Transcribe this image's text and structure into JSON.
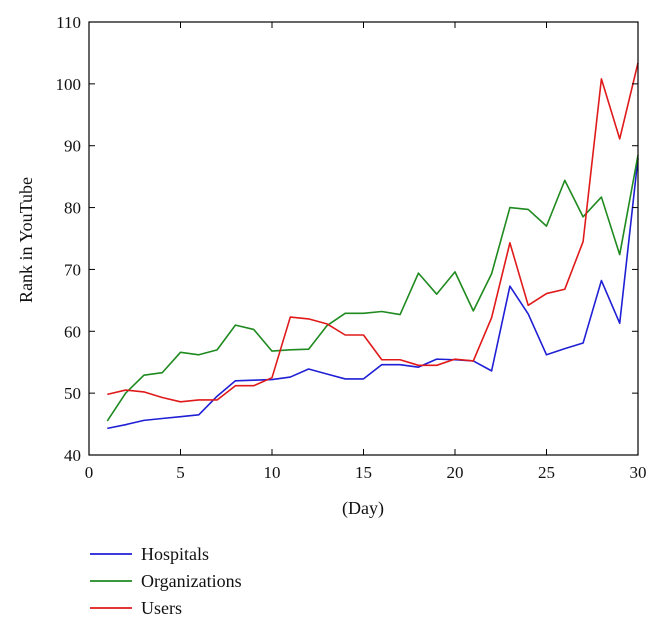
{
  "chart_data": {
    "type": "line",
    "title": "",
    "xlabel": "(Day)",
    "ylabel": "Rank in YouTube",
    "xlim": [
      0,
      30
    ],
    "ylim": [
      40,
      110
    ],
    "xticks": [
      0,
      5,
      10,
      15,
      20,
      25,
      30
    ],
    "yticks": [
      40,
      50,
      60,
      70,
      80,
      90,
      100,
      110
    ],
    "grid": false,
    "legend": "bottom-left, below plot",
    "x": [
      1,
      2,
      3,
      4,
      5,
      6,
      7,
      8,
      9,
      10,
      11,
      12,
      13,
      14,
      15,
      16,
      17,
      18,
      19,
      20,
      21,
      22,
      23,
      24,
      25,
      26,
      27,
      28,
      29,
      30
    ],
    "series": [
      {
        "name": "Hospitals",
        "color": "#1f1fd6",
        "values": [
          44.3,
          44.9,
          45.6,
          45.9,
          46.2,
          46.5,
          49.5,
          52.0,
          52.1,
          52.2,
          52.6,
          53.9,
          53.1,
          52.3,
          52.3,
          54.6,
          54.6,
          54.2,
          55.5,
          55.4,
          55.2,
          53.6,
          67.3,
          62.8,
          56.2,
          57.2,
          58.1,
          68.2,
          61.3,
          88.0
        ]
      },
      {
        "name": "Organizations",
        "color": "#1f8a1f",
        "values": [
          45.5,
          50.0,
          52.9,
          53.3,
          56.6,
          56.2,
          57.0,
          61.0,
          60.3,
          56.8,
          57.0,
          57.1,
          60.9,
          62.9,
          62.9,
          63.2,
          62.7,
          69.4,
          66.0,
          69.6,
          63.3,
          69.3,
          80.0,
          79.7,
          77.0,
          84.4,
          78.5,
          81.7,
          72.4,
          88.5
        ]
      },
      {
        "name": "Users",
        "color": "#e01a1a",
        "values": [
          49.8,
          50.5,
          50.2,
          49.3,
          48.6,
          48.9,
          48.9,
          51.2,
          51.2,
          52.5,
          62.3,
          62.0,
          61.2,
          59.4,
          59.4,
          55.4,
          55.4,
          54.5,
          54.5,
          55.5,
          55.2,
          62.2,
          74.3,
          64.2,
          66.1,
          66.8,
          74.5,
          100.8,
          91.1,
          103.4
        ]
      }
    ]
  }
}
